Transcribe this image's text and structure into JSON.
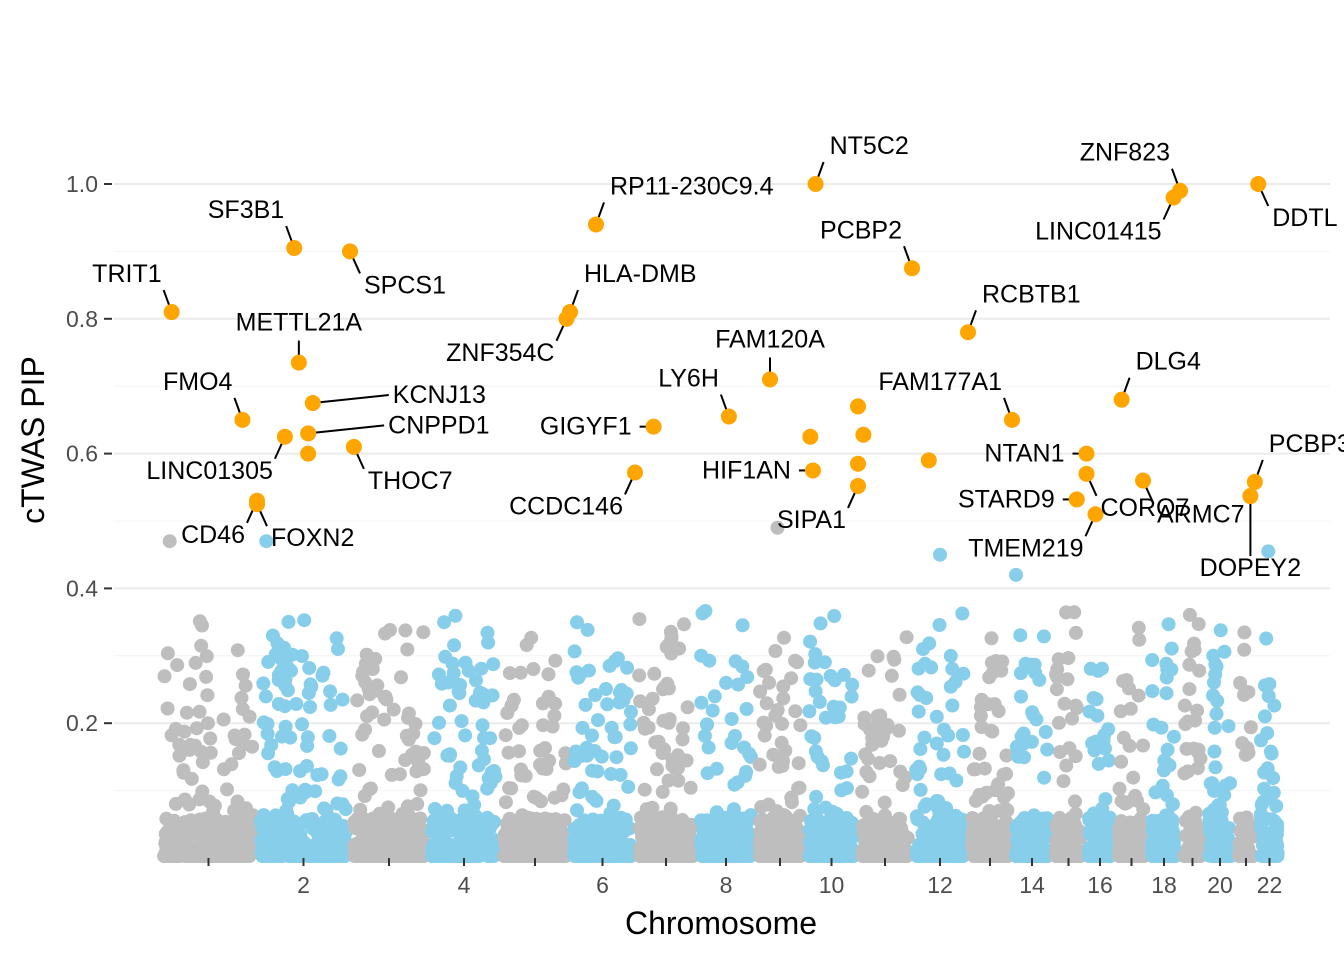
{
  "chart_data": {
    "type": "scatter",
    "title": "",
    "xlabel": "Chromosome",
    "ylabel": "cTWAS PIP",
    "ylim": [
      0,
      1.0
    ],
    "yticks": [
      0.2,
      0.4,
      0.6,
      0.8,
      1.0
    ],
    "ytick_labels": [
      "0.2",
      "0.4",
      "0.6",
      "0.8",
      "1.0"
    ],
    "xticks": [
      {
        "chrom": 1,
        "label": ""
      },
      {
        "chrom": 2,
        "label": "2"
      },
      {
        "chrom": 3,
        "label": ""
      },
      {
        "chrom": 4,
        "label": "4"
      },
      {
        "chrom": 5,
        "label": ""
      },
      {
        "chrom": 6,
        "label": "6"
      },
      {
        "chrom": 7,
        "label": ""
      },
      {
        "chrom": 8,
        "label": "8"
      },
      {
        "chrom": 9,
        "label": ""
      },
      {
        "chrom": 10,
        "label": "10"
      },
      {
        "chrom": 11,
        "label": ""
      },
      {
        "chrom": 12,
        "label": "12"
      },
      {
        "chrom": 13,
        "label": ""
      },
      {
        "chrom": 14,
        "label": "14"
      },
      {
        "chrom": 15,
        "label": ""
      },
      {
        "chrom": 16,
        "label": "16"
      },
      {
        "chrom": 17,
        "label": ""
      },
      {
        "chrom": 18,
        "label": "18"
      },
      {
        "chrom": 19,
        "label": ""
      },
      {
        "chrom": 20,
        "label": "20"
      },
      {
        "chrom": 21,
        "label": ""
      },
      {
        "chrom": 22,
        "label": "22"
      }
    ],
    "colors": {
      "odd_chromosome": "#bebebe",
      "even_chromosome": "#87ceeb",
      "highlight": "#ffa500",
      "grid": "#ebebeb"
    },
    "highlighted_genes": [
      {
        "gene": "TRIT1",
        "chrom": 1,
        "pos": 0.12,
        "pip": 0.81,
        "label_side": "upper-left"
      },
      {
        "gene": "FMO4",
        "chrom": 1,
        "pos": 0.85,
        "pip": 0.65,
        "label_side": "upper-left"
      },
      {
        "gene": "CD46",
        "chrom": 1,
        "pos": 1.0,
        "pip": 0.53,
        "label_side": "lower-left"
      },
      {
        "gene": "SF3B1",
        "chrom": 2,
        "pos": 0.4,
        "pip": 0.905,
        "label_side": "upper-left"
      },
      {
        "gene": "METTL21A",
        "chrom": 2,
        "pos": 0.45,
        "pip": 0.735,
        "label_side": "above"
      },
      {
        "gene": "LINC01305",
        "chrom": 2,
        "pos": 0.3,
        "pip": 0.625,
        "label_side": "lower-left"
      },
      {
        "gene": "FOXN2",
        "chrom": 2,
        "pos": 0.0,
        "pip": 0.525,
        "label_side": "lower-right"
      },
      {
        "gene": "SPCS1",
        "chrom": 3,
        "pos": 0.0,
        "pip": 0.9,
        "label_side": "lower-right"
      },
      {
        "gene": "KCNJ13",
        "chrom": 2,
        "pos": 0.6,
        "pip": 0.675,
        "label_side": "right"
      },
      {
        "gene": "CNPPD1",
        "chrom": 2,
        "pos": 0.55,
        "pip": 0.63,
        "label_side": "right"
      },
      {
        "gene": "THOC7",
        "chrom": 3,
        "pos": 0.05,
        "pip": 0.61,
        "label_side": "lower-right"
      },
      {
        "gene": "RP11-230C9.4",
        "chrom": 6,
        "pos": 0.4,
        "pip": 0.94,
        "label_side": "upper-right"
      },
      {
        "gene": "HLA-DMB",
        "chrom": 6,
        "pos": 0.0,
        "pip": 0.81,
        "label_side": "upper-right"
      },
      {
        "gene": "ZNF354C",
        "chrom": 5,
        "pos": 0.95,
        "pip": 0.8,
        "label_side": "lower-left"
      },
      {
        "gene": "GIGYF1",
        "chrom": 7,
        "pos": 0.3,
        "pip": 0.64,
        "label_side": "left"
      },
      {
        "gene": "CCDC146",
        "chrom": 7,
        "pos": 0.0,
        "pip": 0.572,
        "label_side": "lower-left"
      },
      {
        "gene": "FAM120A",
        "chrom": 9,
        "pos": 0.3,
        "pip": 0.71,
        "label_side": "above"
      },
      {
        "gene": "LY6H",
        "chrom": 8,
        "pos": 0.55,
        "pip": 0.655,
        "label_side": "upper-left"
      },
      {
        "gene": "HIF1AN",
        "chrom": 10,
        "pos": 0.15,
        "pip": 0.575,
        "label_side": "left"
      },
      {
        "gene": "SIPA1",
        "chrom": 11,
        "pos": 0.0,
        "pip": 0.552,
        "label_side": "lower-left"
      },
      {
        "gene": "NT5C2",
        "chrom": 10,
        "pos": 0.2,
        "pip": 1.0,
        "label_side": "upper-right"
      },
      {
        "gene": "PCBP2",
        "chrom": 12,
        "pos": 0.0,
        "pip": 0.875,
        "label_side": "upper-left"
      },
      {
        "gene": "RCBTB1",
        "chrom": 13,
        "pos": 0.0,
        "pip": 0.78,
        "label_side": "upper-right"
      },
      {
        "gene": "FAM177A1",
        "chrom": 14,
        "pos": 0.0,
        "pip": 0.65,
        "label_side": "upper-left"
      },
      {
        "gene": "NTAN1",
        "chrom": 16,
        "pos": 0.05,
        "pip": 0.6,
        "label_side": "left"
      },
      {
        "gene": "STARD9",
        "chrom": 15,
        "pos": 0.75,
        "pip": 0.532,
        "label_side": "left"
      },
      {
        "gene": "TMEM219",
        "chrom": 16,
        "pos": 0.35,
        "pip": 0.51,
        "label_side": "lower-left"
      },
      {
        "gene": "CORO7",
        "chrom": 16,
        "pos": 0.05,
        "pip": 0.57,
        "label_side": "lower-right"
      },
      {
        "gene": "DLG4",
        "chrom": 17,
        "pos": 0.2,
        "pip": 0.68,
        "label_side": "upper-right"
      },
      {
        "gene": "ARMC7",
        "chrom": 17,
        "pos": 0.85,
        "pip": 0.56,
        "label_side": "lower-right"
      },
      {
        "gene": "ZNF823",
        "chrom": 19,
        "pos": 0.0,
        "pip": 0.99,
        "label_side": "upper-left"
      },
      {
        "gene": "LINC01415",
        "chrom": 18,
        "pos": 0.8,
        "pip": 0.98,
        "label_side": "lower-left"
      },
      {
        "gene": "DDTL",
        "chrom": 22,
        "pos": 0.05,
        "pip": 1.0,
        "label_side": "lower-right"
      },
      {
        "gene": "PCBP3",
        "chrom": 21,
        "pos": 0.9,
        "pip": 0.558,
        "label_side": "upper-right"
      },
      {
        "gene": "DOPEY2",
        "chrom": 21,
        "pos": 0.7,
        "pip": 0.537,
        "label_side": "below"
      }
    ],
    "unlabeled_highlights": [
      {
        "chrom": 2,
        "pos": 0.55,
        "pip": 0.6
      },
      {
        "chrom": 10,
        "pos": 0.1,
        "pip": 0.625
      },
      {
        "chrom": 11,
        "pos": 0.0,
        "pip": 0.67
      },
      {
        "chrom": 11,
        "pos": 0.1,
        "pip": 0.628
      },
      {
        "chrom": 11,
        "pos": 0.0,
        "pip": 0.585
      },
      {
        "chrom": 12,
        "pos": 0.3,
        "pip": 0.59
      }
    ],
    "notable_background_points": [
      {
        "chrom": 1,
        "pos": 0.1,
        "pip": 0.47
      },
      {
        "chrom": 2,
        "pos": 0.1,
        "pip": 0.47
      },
      {
        "chrom": 9,
        "pos": 0.45,
        "pip": 0.49
      },
      {
        "chrom": 12,
        "pos": 0.5,
        "pip": 0.45
      },
      {
        "chrom": 14,
        "pos": 0.1,
        "pip": 0.42
      },
      {
        "chrom": 22,
        "pos": 0.45,
        "pip": 0.455
      }
    ]
  }
}
